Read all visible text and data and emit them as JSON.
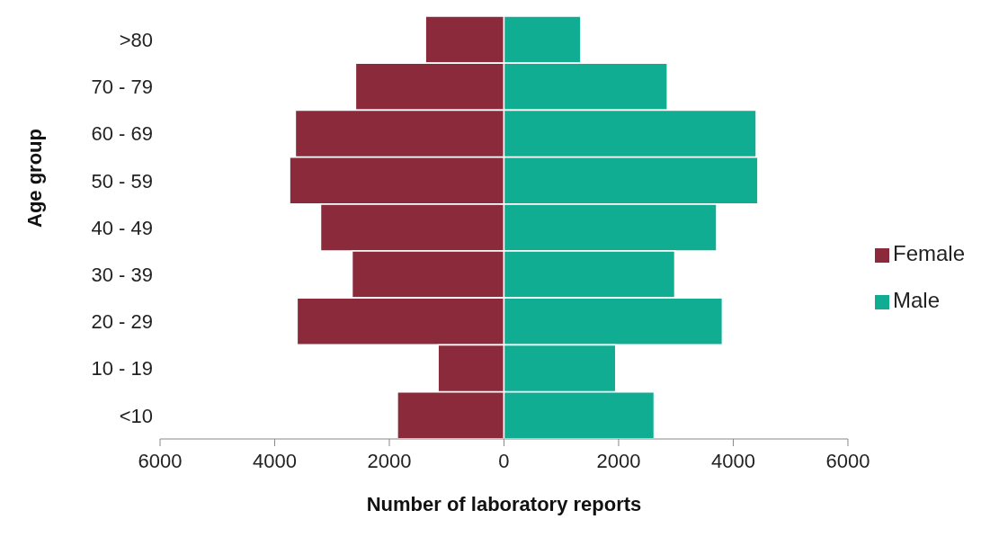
{
  "chart_data": {
    "type": "bar",
    "orientation": "horizontal",
    "stacked": true,
    "xlabel": "Number of laboratory reports",
    "ylabel": "Age group",
    "categories": [
      ">80",
      "70 - 79",
      "60 - 69",
      "50 - 59",
      "40 - 49",
      "30 - 39",
      "20 - 29",
      "10 - 19",
      "<10"
    ],
    "series": [
      {
        "name": "Female",
        "color": "#8b2a3b",
        "values": [
          -1370,
          -2590,
          -3640,
          -3740,
          -3200,
          -2650,
          -3610,
          -1150,
          -1860
        ]
      },
      {
        "name": "Male",
        "color": "#10ad93",
        "values": [
          1340,
          2850,
          4400,
          4430,
          3710,
          2980,
          3810,
          1950,
          2620
        ]
      }
    ],
    "xlim": [
      -6000,
      6000
    ],
    "xticks": [
      {
        "value": -6000,
        "label": "6000"
      },
      {
        "value": -4000,
        "label": "4000"
      },
      {
        "value": -2000,
        "label": "2000"
      },
      0,
      2000,
      4000,
      6000
    ],
    "grid": false,
    "legend": "right"
  }
}
